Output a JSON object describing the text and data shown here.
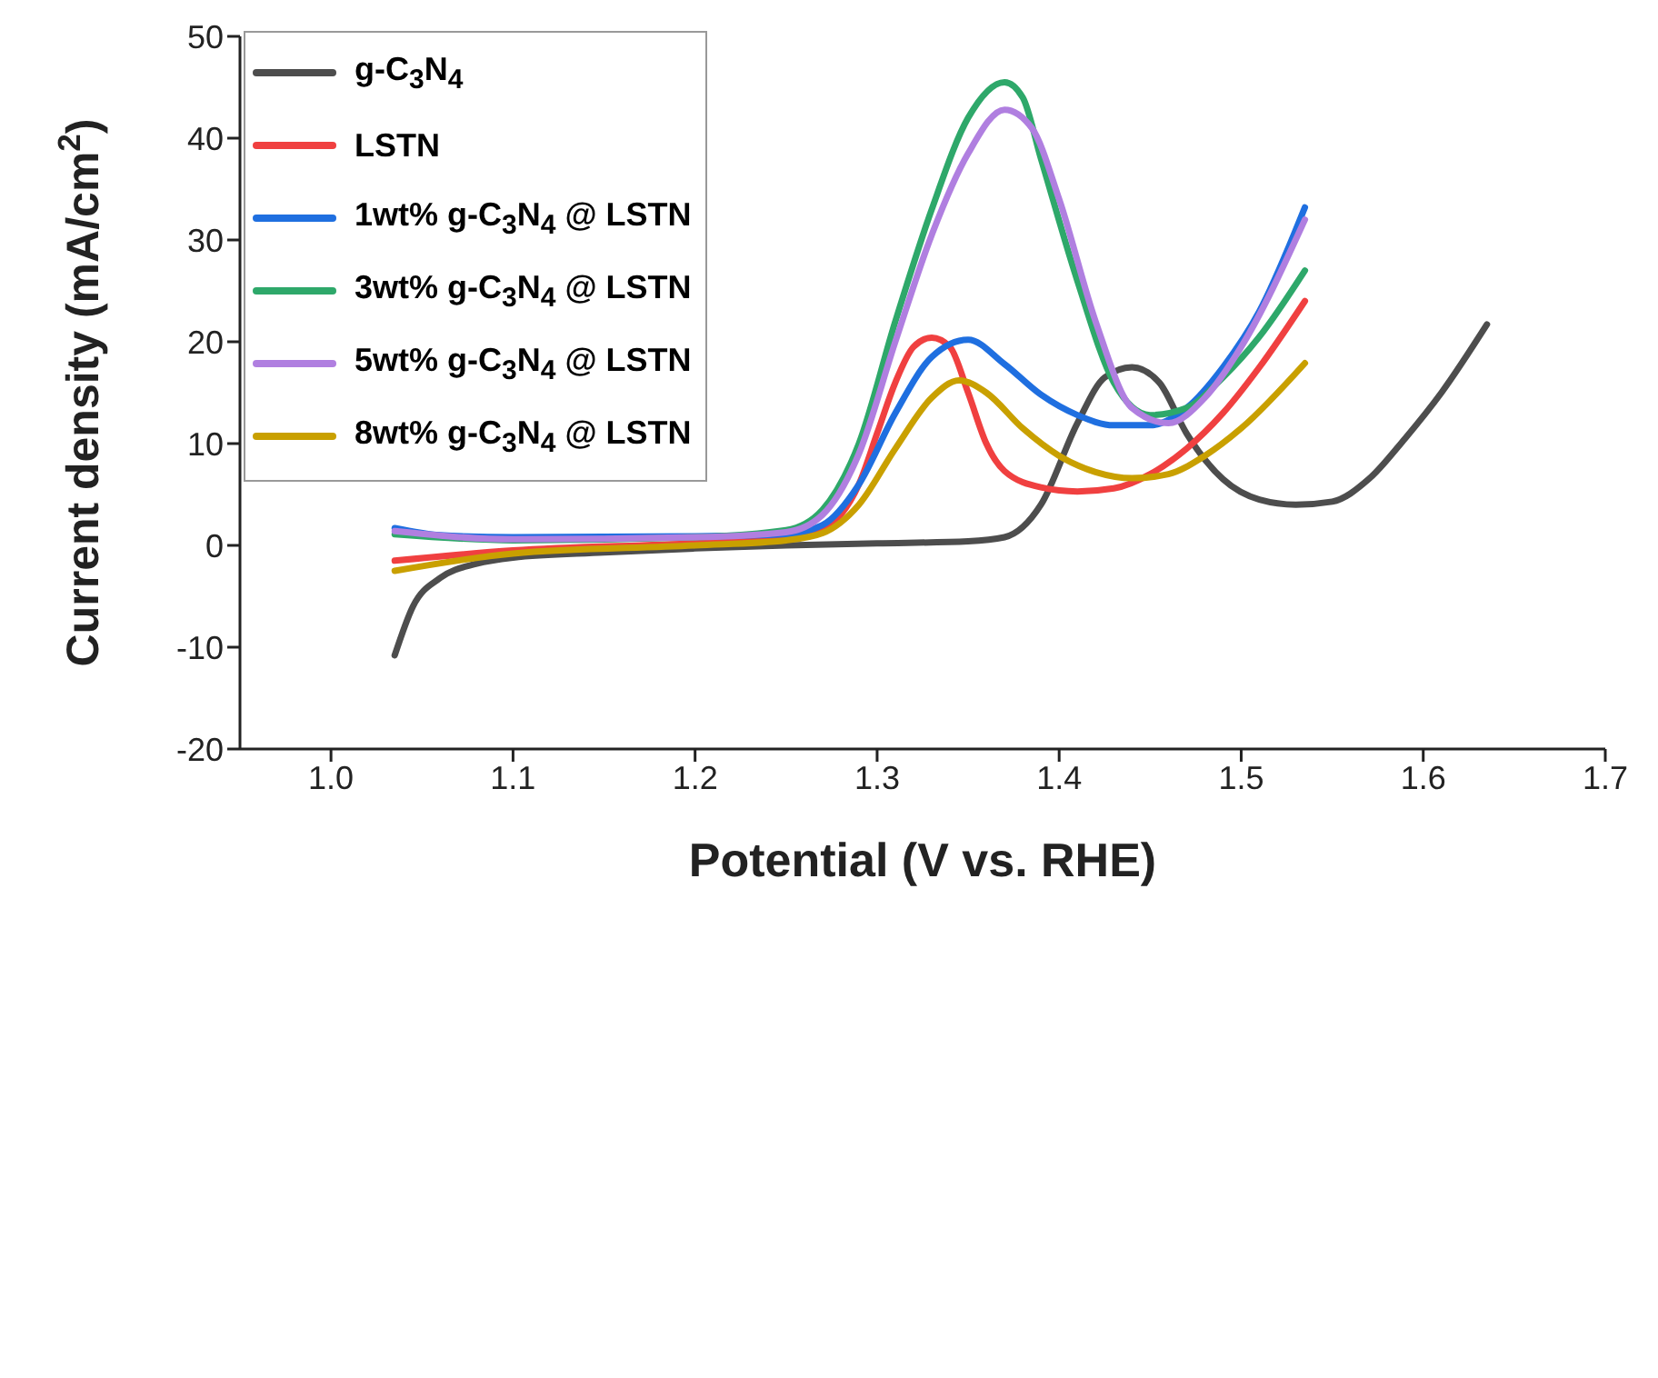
{
  "chart_data": {
    "type": "line",
    "xlabel": "Potential (V vs. RHE)",
    "ylabel": "Current density (mA/cm$^{2}$)",
    "xlim": [
      0.95,
      1.7
    ],
    "xticks": [
      {
        "value": 1.0,
        "label": "1.0"
      },
      1.1,
      1.2,
      1.3,
      1.4,
      1.5,
      1.6,
      1.7
    ],
    "ylim": [
      -20,
      50
    ],
    "yticks": [
      -20,
      -10,
      0,
      10,
      20,
      30,
      40,
      50
    ],
    "legend": "top left",
    "grid": false,
    "marker": "none",
    "line_style": "solid",
    "series": [
      {
        "name": "g-C$_{3}$N$_{4}$",
        "color": "#4d4d4d",
        "x": [
          1.035,
          1.045,
          1.06,
          1.08,
          1.1,
          1.15,
          1.2,
          1.25,
          1.3,
          1.35,
          1.37,
          1.39,
          1.41,
          1.425,
          1.44,
          1.455,
          1.47,
          1.49,
          1.51,
          1.53,
          1.55,
          1.57,
          1.59,
          1.61,
          1.635
        ],
        "values": [
          -10.8,
          -6,
          -3.2,
          -1.8,
          -1.2,
          -0.7,
          -0.3,
          0,
          0.2,
          0.4,
          0.8,
          4,
          12,
          16.5,
          17.5,
          16,
          11,
          6.5,
          4.5,
          4,
          4.3,
          6.5,
          10.5,
          15,
          21.7
        ]
      },
      {
        "name": "LSTN",
        "color": "#f04040",
        "x": [
          1.035,
          1.1,
          1.2,
          1.25,
          1.27,
          1.28,
          1.29,
          1.3,
          1.31,
          1.32,
          1.33,
          1.34,
          1.35,
          1.36,
          1.37,
          1.39,
          1.41,
          1.43,
          1.45,
          1.47,
          1.49,
          1.51,
          1.535
        ],
        "values": [
          -1.5,
          -0.5,
          0.2,
          0.7,
          1.5,
          3,
          6,
          11,
          16,
          19.5,
          20.4,
          19.5,
          15,
          10,
          7.3,
          5.7,
          5.3,
          5.6,
          7,
          9.5,
          13,
          17.5,
          24
        ]
      },
      {
        "name": "1wt% g-C$_{3}$N$_{4}$ @ LSTN",
        "color": "#1f6fe0",
        "x": [
          1.035,
          1.06,
          1.1,
          1.2,
          1.25,
          1.27,
          1.29,
          1.31,
          1.33,
          1.35,
          1.37,
          1.39,
          1.41,
          1.43,
          1.45,
          1.47,
          1.49,
          1.51,
          1.535
        ],
        "values": [
          1.7,
          1,
          0.8,
          0.9,
          1.1,
          2,
          6,
          13,
          18.5,
          20.2,
          17.8,
          14.8,
          12.8,
          11.8,
          11.8,
          13.5,
          17.5,
          23,
          33.2
        ]
      },
      {
        "name": "3wt% g-C$_{3}$N$_{4}$ @ LSTN",
        "color": "#2ea86a",
        "x": [
          1.035,
          1.1,
          1.2,
          1.25,
          1.27,
          1.29,
          1.31,
          1.33,
          1.35,
          1.37,
          1.38,
          1.39,
          1.41,
          1.43,
          1.45,
          1.47,
          1.49,
          1.51,
          1.535
        ],
        "values": [
          1.1,
          0.5,
          0.8,
          1.5,
          3.5,
          10,
          22,
          33,
          42,
          45.5,
          44,
          38,
          26,
          16,
          12.8,
          13.5,
          16.5,
          20.5,
          27
        ]
      },
      {
        "name": "5wt% g-C$_{3}$N$_{4}$ @ LSTN",
        "color": "#b07fe0",
        "x": [
          1.035,
          1.1,
          1.2,
          1.25,
          1.27,
          1.29,
          1.31,
          1.33,
          1.35,
          1.37,
          1.385,
          1.4,
          1.42,
          1.44,
          1.46,
          1.48,
          1.5,
          1.535
        ],
        "values": [
          1.4,
          0.6,
          0.8,
          1.3,
          3,
          9,
          20,
          30.5,
          38.5,
          42.8,
          41,
          34,
          22,
          13.5,
          12,
          14.5,
          19.5,
          32
        ]
      },
      {
        "name": "8wt% g-C$_{3}$N$_{4}$ @ LSTN",
        "color": "#c9a000",
        "x": [
          1.035,
          1.1,
          1.2,
          1.25,
          1.27,
          1.29,
          1.31,
          1.33,
          1.345,
          1.36,
          1.38,
          1.4,
          1.42,
          1.44,
          1.46,
          1.48,
          1.5,
          1.535
        ],
        "values": [
          -2.5,
          -0.8,
          0,
          0.5,
          1.2,
          4,
          9.5,
          14.5,
          16.2,
          15,
          11.5,
          8.8,
          7.2,
          6.6,
          7,
          8.8,
          11.5,
          17.9
        ]
      }
    ]
  }
}
